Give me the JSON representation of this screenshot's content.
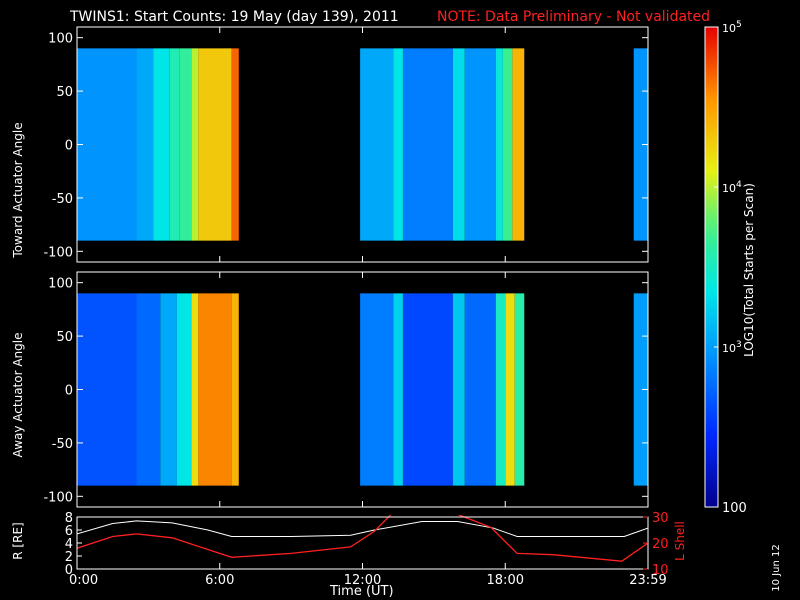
{
  "title": "TWINS1: Start Counts: 19 May (day 139), 2011",
  "note": "NOTE: Data Preliminary - Not validated",
  "date_stamp": "10 Jun 12",
  "colorbar": {
    "label": "LOG10(Total Starts per Scan)",
    "ticks": [
      "10^5",
      "10^4",
      "10^3",
      "100"
    ],
    "scale": "log",
    "range": [
      100,
      100000
    ]
  },
  "colors": {
    "note": "#ff2020",
    "lshell": "#ff2020",
    "r_line": "#ffffff",
    "background": "#000000"
  },
  "chart_data": [
    {
      "type": "heatmap",
      "ylabel": "Toward Actuator Angle",
      "xlim": [
        0,
        24
      ],
      "ylim": [
        -110,
        110
      ],
      "yticks": [
        "100",
        "50",
        "0",
        "-50",
        "-100"
      ],
      "data_extent_y": [
        -90,
        90
      ],
      "segments": [
        {
          "x0": 0.0,
          "x1": 6.8,
          "cols": [
            {
              "x0": 0.0,
              "x1": 2.5,
              "log": 2.95
            },
            {
              "x0": 2.5,
              "x1": 3.2,
              "log": 3.05
            },
            {
              "x0": 3.2,
              "x1": 3.9,
              "log": 3.35
            },
            {
              "x0": 3.9,
              "x1": 4.3,
              "log": 3.55
            },
            {
              "x0": 4.3,
              "x1": 4.8,
              "log": 3.65
            },
            {
              "x0": 4.8,
              "x1": 5.1,
              "log": 4.0
            },
            {
              "x0": 5.1,
              "x1": 6.5,
              "log": 4.3
            },
            {
              "x0": 6.5,
              "x1": 6.8,
              "log": 4.7
            }
          ]
        },
        {
          "x0": 11.9,
          "x1": 18.8,
          "cols": [
            {
              "x0": 11.9,
              "x1": 13.3,
              "log": 3.05
            },
            {
              "x0": 13.3,
              "x1": 13.7,
              "log": 3.35
            },
            {
              "x0": 13.7,
              "x1": 15.8,
              "log": 2.85
            },
            {
              "x0": 15.8,
              "x1": 16.3,
              "log": 3.3
            },
            {
              "x0": 16.3,
              "x1": 17.6,
              "log": 2.95
            },
            {
              "x0": 17.6,
              "x1": 17.9,
              "log": 3.4
            },
            {
              "x0": 17.9,
              "x1": 18.3,
              "log": 3.7
            },
            {
              "x0": 18.3,
              "x1": 18.8,
              "log": 4.4
            }
          ]
        },
        {
          "x0": 23.4,
          "x1": 24.0,
          "cols": [
            {
              "x0": 23.4,
              "x1": 24.0,
              "log": 2.95
            }
          ]
        }
      ]
    },
    {
      "type": "heatmap",
      "ylabel": "Away Actuator Angle",
      "xlim": [
        0,
        24
      ],
      "ylim": [
        -110,
        110
      ],
      "yticks": [
        "100",
        "50",
        "0",
        "-50",
        "-100"
      ],
      "data_extent_y": [
        -90,
        90
      ],
      "segments": [
        {
          "x0": 0.0,
          "x1": 6.8,
          "cols": [
            {
              "x0": 0.0,
              "x1": 2.5,
              "log": 2.65
            },
            {
              "x0": 2.5,
              "x1": 3.5,
              "log": 2.75
            },
            {
              "x0": 3.5,
              "x1": 4.2,
              "log": 3.05
            },
            {
              "x0": 4.2,
              "x1": 4.8,
              "log": 3.35
            },
            {
              "x0": 4.8,
              "x1": 5.1,
              "log": 4.2
            },
            {
              "x0": 5.1,
              "x1": 6.5,
              "log": 4.6
            },
            {
              "x0": 6.5,
              "x1": 6.8,
              "log": 4.4
            }
          ]
        },
        {
          "x0": 11.9,
          "x1": 18.8,
          "cols": [
            {
              "x0": 11.9,
              "x1": 13.3,
              "log": 2.85
            },
            {
              "x0": 13.3,
              "x1": 13.7,
              "log": 3.25
            },
            {
              "x0": 13.7,
              "x1": 15.8,
              "log": 2.6
            },
            {
              "x0": 15.8,
              "x1": 16.3,
              "log": 3.2
            },
            {
              "x0": 16.3,
              "x1": 17.6,
              "log": 2.75
            },
            {
              "x0": 17.6,
              "x1": 18.0,
              "log": 3.5
            },
            {
              "x0": 18.0,
              "x1": 18.4,
              "log": 4.2
            },
            {
              "x0": 18.4,
              "x1": 18.8,
              "log": 3.6
            }
          ]
        },
        {
          "x0": 23.4,
          "x1": 24.0,
          "cols": [
            {
              "x0": 23.4,
              "x1": 24.0,
              "log": 3.0
            }
          ]
        }
      ]
    },
    {
      "type": "line",
      "ylabel": "R [RE]",
      "y2label": "L Shell",
      "xlabel": "Time (UT)",
      "xlim": [
        0,
        24
      ],
      "ylim": [
        0,
        8
      ],
      "y2lim": [
        10,
        30
      ],
      "xticks": [
        "0:00",
        "6:00",
        "12:00",
        "18:00",
        "23:59"
      ],
      "yticks": [
        "8",
        "6",
        "4",
        "2",
        "0"
      ],
      "y2ticks": [
        "30",
        "20",
        "10"
      ],
      "series": [
        {
          "name": "R [RE]",
          "color": "#ffffff",
          "x": [
            0,
            1.5,
            2.5,
            4,
            5.5,
            6.5,
            9,
            11.5,
            12.5,
            14.5,
            16,
            17.5,
            18.5,
            20,
            22,
            23,
            24
          ],
          "y": [
            5.4,
            7.0,
            7.4,
            7.1,
            6.0,
            5.0,
            5.0,
            5.2,
            6.0,
            7.3,
            7.3,
            6.3,
            5.0,
            5.0,
            5.0,
            5.0,
            6.3
          ]
        },
        {
          "name": "L Shell",
          "color": "#ff2020",
          "x": [
            0,
            1.5,
            2.5,
            4,
            5.5,
            6.5,
            9,
            11.5,
            12.5,
            13.2,
            16.0,
            17.4,
            18.5,
            20,
            22.9,
            24
          ],
          "y": [
            18.0,
            22.5,
            23.5,
            22.0,
            17.5,
            14.5,
            16.0,
            18.5,
            24.5,
            31.0,
            31.0,
            26.0,
            16.0,
            15.5,
            13.0,
            20.0
          ]
        }
      ]
    }
  ]
}
